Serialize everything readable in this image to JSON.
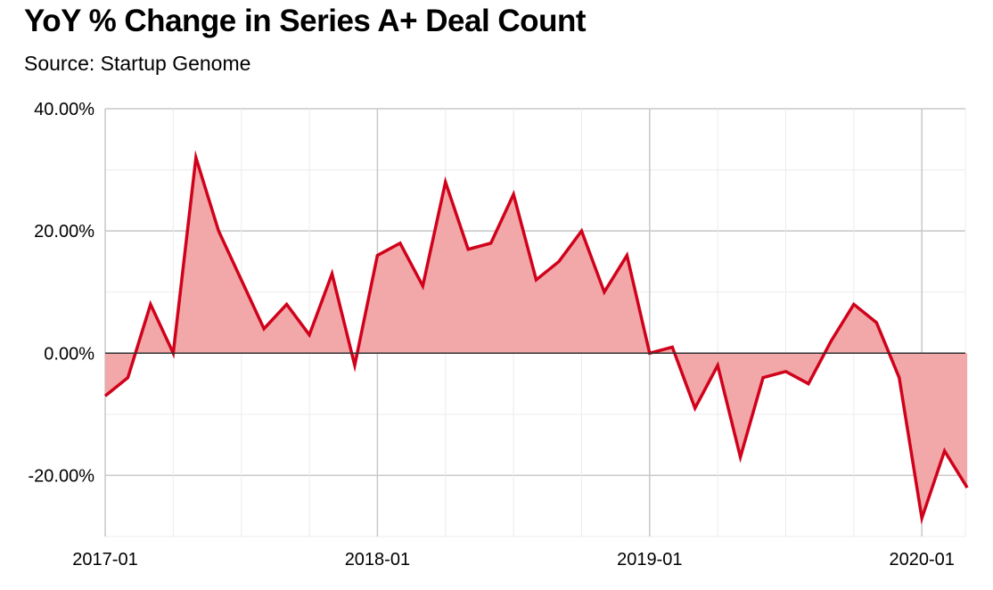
{
  "title": "YoY % Change in Series A+ Deal Count",
  "subtitle": "Source: Startup Genome",
  "colors": {
    "line": "#d0021b",
    "fill": "#f2a7a9",
    "grid_major": "#c8c8c8",
    "grid_minor": "#ececec",
    "zero": "#333333"
  },
  "chart_data": {
    "type": "area",
    "title": "YoY % Change in Series A+ Deal Count",
    "subtitle": "Source: Startup Genome",
    "xlabel": "",
    "ylabel": "",
    "ylim": [
      -30,
      40
    ],
    "xlim": [
      "2017-01",
      "2020-03"
    ],
    "yticks": [
      -20,
      0,
      20,
      40
    ],
    "ytick_labels": [
      "-20.00%",
      "0.00%",
      "20.00%",
      "40.00%"
    ],
    "xticks": [
      "2017-01",
      "2018-01",
      "2019-01",
      "2020-01"
    ],
    "xtick_labels": [
      "2017-01",
      "2018-01",
      "2019-01",
      "2020-01"
    ],
    "grid": true,
    "series": [
      {
        "x": [
          "2017-01",
          "2017-02",
          "2017-03",
          "2017-04",
          "2017-05",
          "2017-06",
          "2017-07",
          "2017-08",
          "2017-09",
          "2017-10",
          "2017-11",
          "2017-12",
          "2018-01",
          "2018-02",
          "2018-03",
          "2018-04",
          "2018-05",
          "2018-06",
          "2018-07",
          "2018-08",
          "2018-09",
          "2018-10",
          "2018-11",
          "2018-12",
          "2019-01",
          "2019-02",
          "2019-03",
          "2019-04",
          "2019-05",
          "2019-06",
          "2019-07",
          "2019-08",
          "2019-09",
          "2019-10",
          "2019-11",
          "2019-12",
          "2020-01",
          "2020-02",
          "2020-03"
        ],
        "values": [
          -7,
          -4,
          8,
          0,
          32,
          20,
          12,
          4,
          8,
          3,
          13,
          -2,
          16,
          18,
          11,
          28,
          17,
          18,
          26,
          12,
          15,
          20,
          10,
          16,
          0,
          1,
          -9,
          -2,
          -17,
          -4,
          -3,
          -5,
          2,
          8,
          5,
          -4,
          -27,
          -16,
          -22
        ]
      }
    ]
  }
}
